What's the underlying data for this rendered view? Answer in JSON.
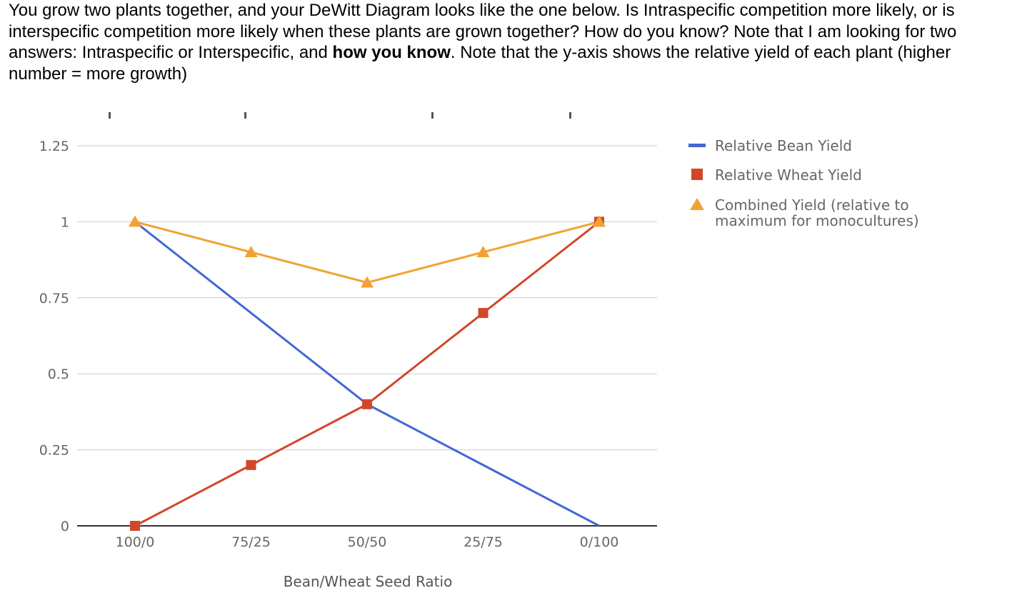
{
  "question": {
    "part1": "You grow two plants together, and your DeWitt Diagram looks like the one below. Is Intraspecific competition more likely, or is interspecific competition more likely when these plants are grown together? How do you know? Note that I am looking for two answers: Intraspecific or Interspecific, and ",
    "bold": "how you know",
    "part2": ". Note that the y-axis shows the relative yield of each plant (higher number = more growth)"
  },
  "chart_data": {
    "type": "line",
    "categories": [
      "100/0",
      "75/25",
      "50/50",
      "25/75",
      "0/100"
    ],
    "series": [
      {
        "name": "Relative Bean Yield",
        "values": [
          1,
          0.7,
          0.4,
          0.2,
          0
        ],
        "color": "#4169d4",
        "marker": "none"
      },
      {
        "name": "Relative Wheat Yield",
        "values": [
          0,
          0.2,
          0.4,
          0.7,
          1
        ],
        "color": "#d2472a",
        "marker": "square"
      },
      {
        "name": "Combined Yield (relative to maximum for monocultures)",
        "legend_lines": [
          "Combined Yield (relative to",
          "maximum for monocultures)"
        ],
        "values": [
          1,
          0.9,
          0.8,
          0.9,
          1
        ],
        "color": "#f2a232",
        "marker": "triangle"
      }
    ],
    "title": "",
    "xlabel": "Bean/Wheat Seed Ratio",
    "ylabel": "",
    "ylim": [
      0,
      1.25
    ],
    "yticks": [
      0,
      0.25,
      0.5,
      0.75,
      1,
      1.25
    ],
    "ytick_labels": [
      "0",
      "0.25",
      "0.5",
      "0.75",
      "1",
      "1.25"
    ],
    "grid": true,
    "legend_position": "right"
  }
}
